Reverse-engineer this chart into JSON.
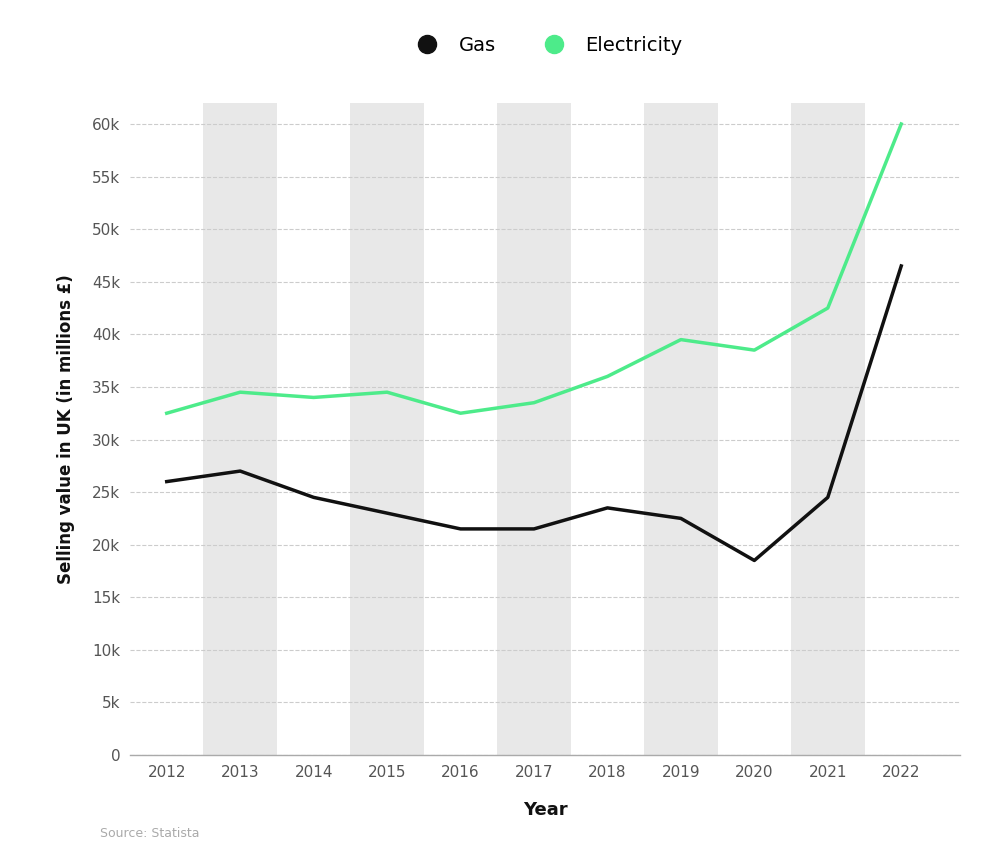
{
  "years": [
    2012,
    2013,
    2014,
    2015,
    2016,
    2017,
    2018,
    2019,
    2020,
    2021,
    2022
  ],
  "gas": [
    26000,
    27000,
    24500,
    23000,
    21500,
    21500,
    23500,
    22500,
    18500,
    24500,
    46500
  ],
  "electricity": [
    32500,
    34500,
    34000,
    34500,
    32500,
    33500,
    36000,
    39500,
    38500,
    42500,
    60000
  ],
  "gas_color": "#111111",
  "electricity_color": "#4deb8a",
  "bg_color": "#ffffff",
  "stripe_color": "#e8e8e8",
  "grid_color": "#cccccc",
  "ylabel": "Selling value in UK (in millions £)",
  "xlabel": "Year",
  "legend_labels": [
    "Gas",
    "Electricity"
  ],
  "source_text": "Source: Statista",
  "ylim": [
    0,
    62000
  ],
  "ytick_values": [
    0,
    5000,
    10000,
    15000,
    20000,
    25000,
    30000,
    35000,
    40000,
    45000,
    50000,
    55000,
    60000
  ],
  "line_width": 2.5,
  "stripe_years": [
    2013,
    2015,
    2017,
    2019,
    2021
  ],
  "xlim_left": 2011.5,
  "xlim_right": 2022.8
}
